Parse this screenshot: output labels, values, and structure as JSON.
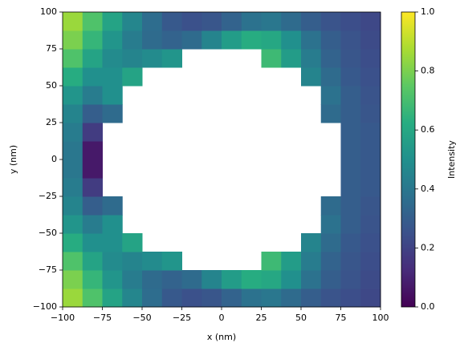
{
  "chart_data": {
    "type": "heatmap",
    "x_label": "x (nm)",
    "y_label": "y (nm)",
    "colorbar_label": "Intensity",
    "xbins": [
      -100,
      -87.5,
      -75,
      -62.5,
      -50,
      -37.5,
      -25,
      -12.5,
      0,
      12.5,
      25,
      37.5,
      50,
      62.5,
      75,
      87.5,
      100
    ],
    "ybins": [
      -100,
      -87.5,
      -75,
      -62.5,
      -50,
      -37.5,
      -25,
      -12.5,
      0,
      12.5,
      25,
      37.5,
      50,
      62.5,
      75,
      87.5,
      100
    ],
    "values": [
      [
        0.85,
        0.72,
        0.58,
        0.46,
        0.36,
        0.28,
        0.25,
        0.27,
        0.32,
        0.38,
        0.4,
        0.35,
        0.3,
        0.26,
        0.24,
        0.22
      ],
      [
        0.8,
        0.66,
        0.52,
        0.42,
        0.35,
        0.32,
        0.35,
        0.45,
        0.55,
        0.62,
        0.6,
        0.5,
        0.38,
        0.3,
        0.26,
        0.23
      ],
      [
        0.72,
        0.58,
        0.48,
        0.45,
        0.48,
        0.52,
        null,
        null,
        null,
        null,
        0.68,
        0.55,
        0.42,
        0.32,
        0.27,
        0.24
      ],
      [
        0.62,
        0.5,
        0.5,
        0.58,
        null,
        null,
        null,
        null,
        null,
        null,
        null,
        null,
        0.45,
        0.35,
        0.28,
        0.25
      ],
      [
        0.52,
        0.42,
        0.5,
        null,
        null,
        null,
        null,
        null,
        null,
        null,
        null,
        null,
        null,
        0.38,
        0.3,
        0.26
      ],
      [
        0.45,
        0.3,
        0.35,
        null,
        null,
        null,
        null,
        null,
        null,
        null,
        null,
        null,
        null,
        0.35,
        0.3,
        0.27
      ],
      [
        0.42,
        0.18,
        null,
        null,
        null,
        null,
        null,
        null,
        null,
        null,
        null,
        null,
        null,
        null,
        0.3,
        0.28
      ],
      [
        0.4,
        0.07,
        null,
        null,
        null,
        null,
        null,
        null,
        null,
        null,
        null,
        null,
        null,
        null,
        0.3,
        0.28
      ],
      [
        0.4,
        0.07,
        null,
        null,
        null,
        null,
        null,
        null,
        null,
        null,
        null,
        null,
        null,
        null,
        0.3,
        0.28
      ],
      [
        0.42,
        0.18,
        null,
        null,
        null,
        null,
        null,
        null,
        null,
        null,
        null,
        null,
        null,
        null,
        0.3,
        0.28
      ],
      [
        0.45,
        0.3,
        0.35,
        null,
        null,
        null,
        null,
        null,
        null,
        null,
        null,
        null,
        null,
        0.35,
        0.3,
        0.27
      ],
      [
        0.52,
        0.42,
        0.5,
        null,
        null,
        null,
        null,
        null,
        null,
        null,
        null,
        null,
        null,
        0.38,
        0.3,
        0.26
      ],
      [
        0.62,
        0.5,
        0.5,
        0.58,
        null,
        null,
        null,
        null,
        null,
        null,
        null,
        null,
        0.45,
        0.35,
        0.28,
        0.25
      ],
      [
        0.72,
        0.58,
        0.48,
        0.45,
        0.48,
        0.52,
        null,
        null,
        null,
        null,
        0.68,
        0.55,
        0.42,
        0.32,
        0.27,
        0.24
      ],
      [
        0.8,
        0.66,
        0.52,
        0.42,
        0.35,
        0.32,
        0.35,
        0.45,
        0.55,
        0.62,
        0.6,
        0.5,
        0.38,
        0.3,
        0.26,
        0.23
      ],
      [
        0.85,
        0.72,
        0.58,
        0.46,
        0.36,
        0.28,
        0.25,
        0.27,
        0.32,
        0.38,
        0.4,
        0.35,
        0.3,
        0.26,
        0.24,
        0.22
      ]
    ],
    "xlim": [
      -100,
      100
    ],
    "ylim": [
      -100,
      100
    ],
    "xticks": [
      {
        "value": -100,
        "label": "−100"
      },
      {
        "value": -75,
        "label": "−75"
      },
      {
        "value": -50,
        "label": "−50"
      },
      {
        "value": -25,
        "label": "−25"
      },
      0,
      25,
      50,
      75,
      100
    ],
    "yticks": [
      {
        "value": -100,
        "label": "−100"
      },
      {
        "value": -75,
        "label": "−75"
      },
      {
        "value": -50,
        "label": "−50"
      },
      {
        "value": -25,
        "label": "−25"
      },
      0,
      25,
      50,
      75,
      100
    ],
    "clim": [
      0,
      1
    ],
    "cticks": [
      {
        "value": 0,
        "label": "0.0"
      },
      {
        "value": 0.2,
        "label": "0.2"
      },
      {
        "value": 0.4,
        "label": "0.4"
      },
      {
        "value": 0.6,
        "label": "0.6"
      },
      {
        "value": 0.8,
        "label": "0.8"
      },
      {
        "value": 1,
        "label": "1.0"
      }
    ],
    "colormap": [
      "#440154",
      "#472c7a",
      "#3b518b",
      "#2c718e",
      "#21908d",
      "#27ad81",
      "#5cc863",
      "#aadc32",
      "#fde725"
    ]
  }
}
